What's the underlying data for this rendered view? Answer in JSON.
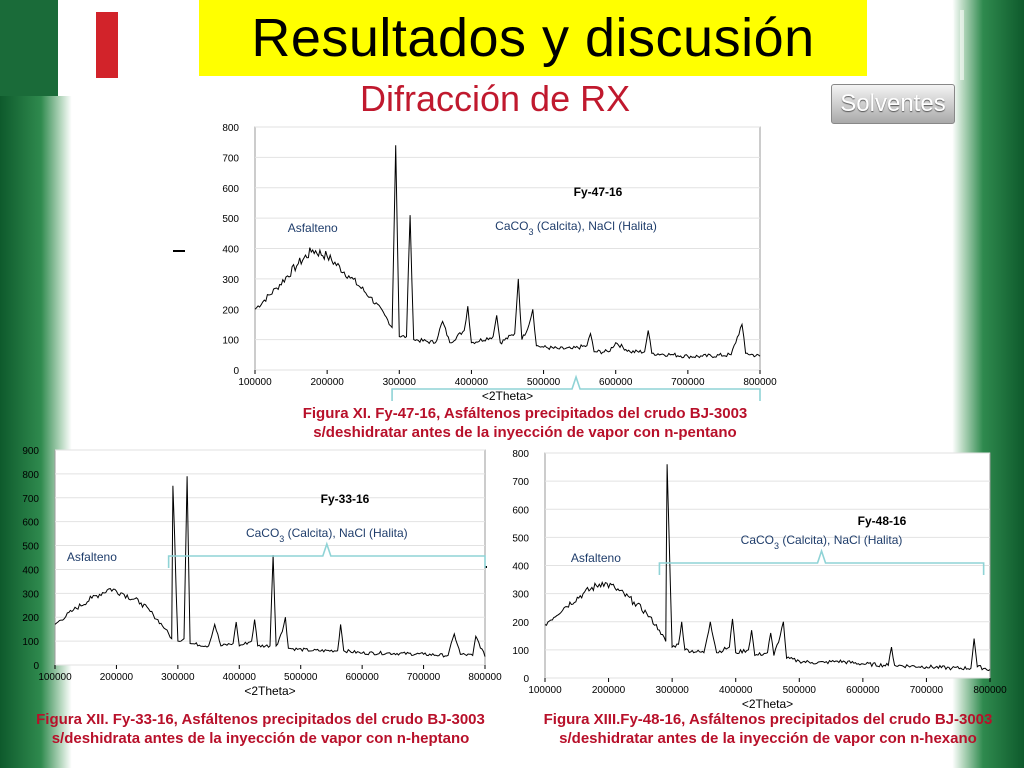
{
  "header": {
    "title": "Resultados y discusión",
    "subtitle": "Difracción de RX",
    "button_label": "Solventes"
  },
  "captions": [
    {
      "line1": "Figura XI. Fy-47-16, Asfáltenos precipitados del crudo BJ-3003",
      "line2": "s/deshidratar antes de la inyección de vapor con n-pentano"
    },
    {
      "line1": "Figura XII. Fy-33-16, Asfáltenos precipitados del crudo  BJ-3003",
      "line2": "s/deshidrata antes de la inyección de vapor con n-heptano"
    },
    {
      "line1": "Figura XIII.Fy-48-16, Asfáltenos precipitados del crudo BJ-3003",
      "line2": "s/deshidratar antes de la inyección de  vapor con n-hexano"
    }
  ],
  "colors": {
    "title_bg": "#ffff00",
    "subtitle": "#c0192e",
    "caption": "#b8102a",
    "annotation": "#8fd3d6",
    "trace": "#000000"
  },
  "chart_data": [
    {
      "type": "line",
      "sample_label": "Fy-47-16",
      "xlabel": "<2Theta>",
      "ylabel": "",
      "xlim": [
        100000,
        800000
      ],
      "ylim": [
        0,
        800
      ],
      "xticks": [
        "100000",
        "200000",
        "300000",
        "400000",
        "500000",
        "600000",
        "700000",
        "800000"
      ],
      "yticks": [
        "0",
        "100",
        "200",
        "300",
        "400",
        "500",
        "600",
        "700",
        "800"
      ],
      "annotations": [
        {
          "label": "Asfalteno",
          "x": 180000,
          "y": 450
        },
        {
          "label": "CaCO",
          "sub": "3",
          "rest": " (Calcita), NaCl (Halita)",
          "bracket_x": [
            290000,
            800000
          ]
        }
      ],
      "series": [
        {
          "x": [
            100000,
            130000,
            160000,
            180000,
            200000,
            230000,
            260000,
            280000,
            290000,
            295000,
            300000,
            310000,
            315000,
            320000,
            350000,
            360000,
            370000,
            390000,
            395000,
            400000,
            430000,
            435000,
            440000,
            460000,
            465000,
            470000,
            480000,
            485000,
            490000,
            500000,
            520000,
            540000,
            560000,
            565000,
            570000,
            590000,
            600000,
            620000,
            640000,
            645000,
            650000,
            680000,
            700000,
            720000,
            760000,
            775000,
            780000,
            800000
          ],
          "y": [
            200,
            270,
            350,
            395,
            375,
            310,
            240,
            180,
            140,
            740,
            110,
            110,
            510,
            100,
            90,
            160,
            90,
            130,
            210,
            90,
            110,
            180,
            90,
            120,
            300,
            100,
            150,
            200,
            80,
            75,
            70,
            70,
            80,
            120,
            60,
            60,
            90,
            60,
            60,
            130,
            55,
            50,
            45,
            45,
            50,
            150,
            55,
            45
          ]
        }
      ]
    },
    {
      "type": "line",
      "sample_label": "Fy-33-16",
      "xlabel": "<2Theta>",
      "ylabel": "",
      "xlim": [
        100000,
        800000
      ],
      "ylim": [
        0,
        900
      ],
      "xticks": [
        "100000",
        "200000",
        "300000",
        "400000",
        "500000",
        "600000",
        "700000",
        "800000"
      ],
      "yticks": [
        "0",
        "100",
        "200",
        "300",
        "400",
        "500",
        "600",
        "700",
        "800",
        "900"
      ],
      "annotations": [
        {
          "label": "Asfalteno",
          "x": 160000,
          "y": 420
        },
        {
          "label": "CaCO",
          "sub": "3",
          "rest": " (Calcita), NaCl (Halita)",
          "bracket_x": [
            285000,
            800000
          ]
        }
      ],
      "series": [
        {
          "x": [
            100000,
            130000,
            160000,
            190000,
            210000,
            240000,
            260000,
            280000,
            290000,
            292000,
            300000,
            310000,
            315000,
            320000,
            350000,
            360000,
            370000,
            390000,
            395000,
            400000,
            420000,
            425000,
            430000,
            450000,
            455000,
            460000,
            470000,
            475000,
            480000,
            520000,
            560000,
            565000,
            570000,
            600000,
            640000,
            700000,
            740000,
            750000,
            760000,
            780000,
            785000,
            800000
          ],
          "y": [
            170,
            230,
            280,
            320,
            300,
            260,
            210,
            150,
            110,
            750,
            100,
            110,
            790,
            90,
            80,
            170,
            80,
            90,
            180,
            80,
            100,
            190,
            80,
            80,
            460,
            80,
            140,
            200,
            70,
            60,
            60,
            170,
            60,
            50,
            50,
            45,
            40,
            130,
            45,
            40,
            120,
            35
          ]
        }
      ]
    },
    {
      "type": "line",
      "sample_label": "Fy-48-16",
      "xlabel": "<2Theta>",
      "ylabel": "",
      "xlim": [
        100000,
        800000
      ],
      "ylim": [
        0,
        800
      ],
      "xticks": [
        "100000",
        "200000",
        "300000",
        "400000",
        "500000",
        "600000",
        "700000",
        "800000"
      ],
      "yticks": [
        "0",
        "100",
        "200",
        "300",
        "400",
        "500",
        "600",
        "700",
        "800"
      ],
      "annotations": [
        {
          "label": "Asfalteno",
          "x": 180000,
          "y": 430
        },
        {
          "label": "CaCO",
          "sub": "3",
          "rest": " (Calcita), NaCl (Halita)",
          "bracket_x": [
            280000,
            790000
          ]
        }
      ],
      "series": [
        {
          "x": [
            100000,
            130000,
            160000,
            190000,
            210000,
            240000,
            260000,
            280000,
            290000,
            292000,
            300000,
            310000,
            315000,
            320000,
            350000,
            360000,
            370000,
            390000,
            395000,
            400000,
            420000,
            425000,
            430000,
            450000,
            455000,
            460000,
            470000,
            475000,
            480000,
            500000,
            520000,
            540000,
            560000,
            600000,
            640000,
            645000,
            650000,
            700000,
            740000,
            770000,
            775000,
            780000,
            800000
          ],
          "y": [
            190,
            250,
            300,
            340,
            320,
            270,
            230,
            170,
            130,
            760,
            110,
            120,
            200,
            100,
            90,
            200,
            90,
            110,
            210,
            90,
            100,
            170,
            80,
            90,
            160,
            80,
            150,
            200,
            70,
            60,
            55,
            55,
            60,
            50,
            45,
            110,
            45,
            40,
            35,
            35,
            140,
            40,
            30
          ]
        }
      ]
    }
  ]
}
